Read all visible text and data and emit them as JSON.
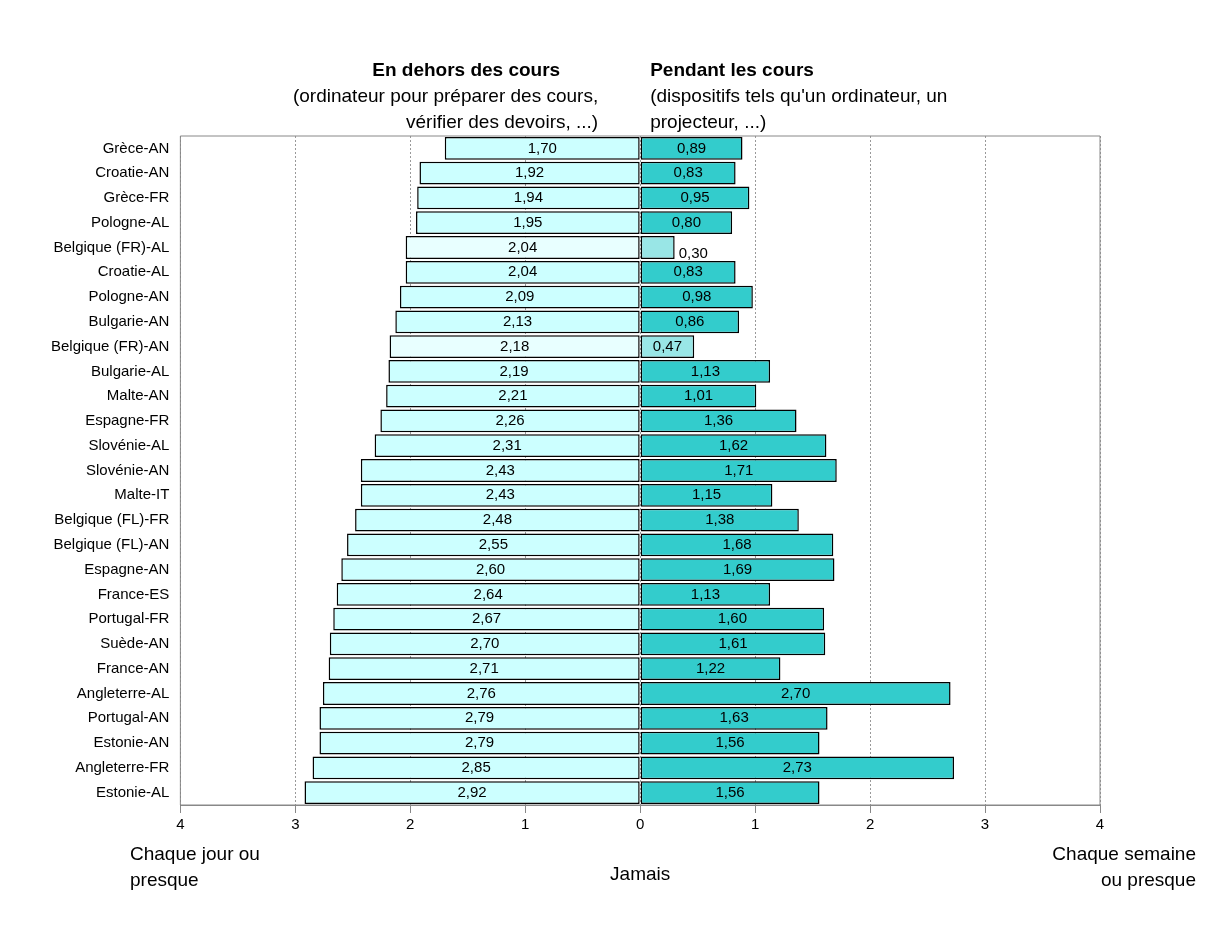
{
  "chart_data": {
    "type": "bar",
    "orientation": "horizontal",
    "categories": [
      "Grèce-AN",
      "Croatie-AN",
      "Grèce-FR",
      "Pologne-AL",
      "Belgique (FR)-AL",
      "Croatie-AL",
      "Pologne-AN",
      "Bulgarie-AN",
      "Belgique (FR)-AN",
      "Bulgarie-AL",
      "Malte-AN",
      "Espagne-FR",
      "Slovénie-AL",
      "Slovénie-AN",
      "Malte-IT",
      "Belgique (FL)-FR",
      "Belgique (FL)-AN",
      "Espagne-AN",
      "France-ES",
      "Portugal-FR",
      "Suède-AN",
      "France-AN",
      "Angleterre-AL",
      "Portugal-AN",
      "Estonie-AN",
      "Angleterre-FR",
      "Estonie-AL"
    ],
    "series": [
      {
        "colors": [
          "#ccffff",
          "#ccffff",
          "#ccffff",
          "#ccffff",
          "#e8ffff",
          "#ccffff",
          "#ccffff",
          "#ccffff",
          "#e8ffff",
          "#ccffff",
          "#ccffff",
          "#ccffff",
          "#ccffff",
          "#ccffff",
          "#ccffff",
          "#ccffff",
          "#ccffff",
          "#ccffff",
          "#ccffff",
          "#ccffff",
          "#ccffff",
          "#ccffff",
          "#ccffff",
          "#ccffff",
          "#ccffff",
          "#ccffff",
          "#ccffff"
        ],
        "base": [
          -1.7,
          -1.92,
          -1.94,
          -1.95,
          -2.04,
          -2.04,
          -2.09,
          -2.13,
          -2.18,
          -2.19,
          -2.21,
          -2.26,
          -2.31,
          -2.43,
          -2.43,
          -2.48,
          -2.55,
          -2.6,
          -2.64,
          -2.67,
          -2.7,
          -2.71,
          -2.76,
          -2.79,
          -2.79,
          -2.85,
          -2.92
        ],
        "values": [
          1.7,
          1.92,
          1.94,
          1.95,
          2.04,
          2.04,
          2.09,
          2.13,
          2.18,
          2.19,
          2.21,
          2.26,
          2.31,
          2.43,
          2.43,
          2.48,
          2.55,
          2.6,
          2.64,
          2.67,
          2.7,
          2.71,
          2.76,
          2.79,
          2.79,
          2.85,
          2.92
        ],
        "value_labels": [
          "1,70",
          "1,92",
          "1,94",
          "1,95",
          "2,04",
          "2,04",
          "2,09",
          "2,13",
          "2,18",
          "2,19",
          "2,21",
          "2,26",
          "2,31",
          "2,43",
          "2,43",
          "2,48",
          "2,55",
          "2,60",
          "2,64",
          "2,67",
          "2,70",
          "2,71",
          "2,76",
          "2,79",
          "2,79",
          "2,85",
          "2,92"
        ]
      },
      {
        "colors": [
          "#33cccc",
          "#33cccc",
          "#33cccc",
          "#33cccc",
          "#99e6e6",
          "#33cccc",
          "#33cccc",
          "#33cccc",
          "#99e6e6",
          "#33cccc",
          "#33cccc",
          "#33cccc",
          "#33cccc",
          "#33cccc",
          "#33cccc",
          "#33cccc",
          "#33cccc",
          "#33cccc",
          "#33cccc",
          "#33cccc",
          "#33cccc",
          "#33cccc",
          "#33cccc",
          "#33cccc",
          "#33cccc",
          "#33cccc",
          "#33cccc"
        ],
        "values": [
          0.89,
          0.83,
          0.95,
          0.8,
          0.3,
          0.83,
          0.98,
          0.86,
          0.47,
          1.13,
          1.01,
          1.36,
          1.62,
          1.71,
          1.15,
          1.38,
          1.68,
          1.69,
          1.13,
          1.6,
          1.61,
          1.22,
          2.7,
          1.63,
          1.56,
          2.73,
          1.56
        ],
        "value_labels": [
          "0,89",
          "0,83",
          "0,95",
          "0,80",
          "0,30",
          "0,83",
          "0,98",
          "0,86",
          "0,47",
          "1,13",
          "1,01",
          "1,36",
          "1,62",
          "1,71",
          "1,15",
          "1,38",
          "1,68",
          "1,69",
          "1,13",
          "1,60",
          "1,61",
          "1,22",
          "2,70",
          "1,63",
          "1,56",
          "2,73",
          "1,56"
        ]
      }
    ],
    "xlim": [
      -4,
      4
    ],
    "xticks": [
      {
        "value": -4,
        "label": "4"
      },
      {
        "value": -3,
        "label": "3"
      },
      {
        "value": -2,
        "label": "2"
      },
      {
        "value": -1,
        "label": "1"
      },
      0,
      1,
      2,
      3,
      4
    ],
    "annotations": [
      "En dehors des cours",
      "(ordinateur pour préparer des cours, vérifier des devoirs, ...)",
      "Pendant les cours",
      "(dispositifs tels qu'un ordinateur, un projecteur, ...)",
      "Chaque jour ou presque",
      "Jamais",
      "Chaque semaine ou presque"
    ],
    "grid": "x",
    "legend": false
  }
}
